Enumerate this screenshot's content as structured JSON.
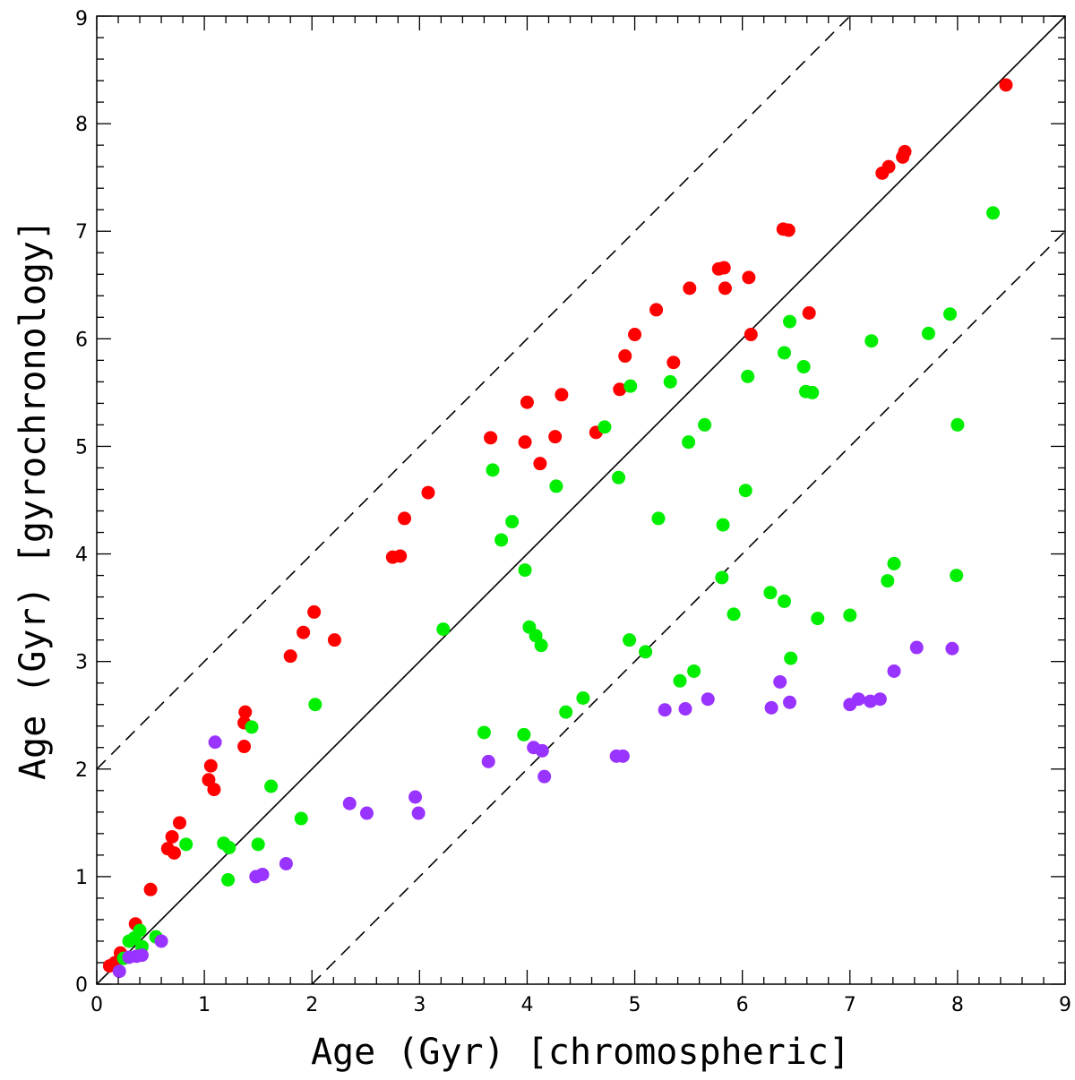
{
  "chart_data": {
    "type": "scatter",
    "title": "",
    "xlabel": "Age (Gyr) [chromospheric]",
    "ylabel": "Age (Gyr) [gyrochronology]",
    "xlim": [
      0,
      9
    ],
    "ylim": [
      0,
      9
    ],
    "xticks": [
      0,
      1,
      2,
      3,
      4,
      5,
      6,
      7,
      8,
      9
    ],
    "yticks": [
      0,
      1,
      2,
      3,
      4,
      5,
      6,
      7,
      8,
      9
    ],
    "x_tick_labels": [
      "0",
      "1",
      "2",
      "3",
      "4",
      "5",
      "6",
      "7",
      "8",
      "9"
    ],
    "y_tick_labels": [
      "0",
      "1",
      "2",
      "3",
      "4",
      "5",
      "6",
      "7",
      "8",
      "9"
    ],
    "grid": false,
    "legend": "none",
    "reference_lines": [
      {
        "style": "solid",
        "points": [
          [
            0,
            0
          ],
          [
            9,
            9
          ]
        ]
      },
      {
        "style": "dashed",
        "points": [
          [
            0,
            2
          ],
          [
            7,
            9
          ]
        ]
      },
      {
        "style": "dashed",
        "points": [
          [
            2,
            0
          ],
          [
            9,
            7
          ]
        ]
      }
    ],
    "series": [
      {
        "color": "#ff0000",
        "points": [
          [
            0.12,
            0.17
          ],
          [
            0.17,
            0.2
          ],
          [
            0.22,
            0.29
          ],
          [
            0.36,
            0.56
          ],
          [
            0.5,
            0.88
          ],
          [
            0.66,
            1.26
          ],
          [
            0.7,
            1.37
          ],
          [
            0.72,
            1.22
          ],
          [
            0.77,
            1.5
          ],
          [
            1.04,
            1.9
          ],
          [
            1.06,
            2.03
          ],
          [
            1.09,
            1.81
          ],
          [
            1.37,
            2.21
          ],
          [
            1.37,
            2.43
          ],
          [
            1.38,
            2.53
          ],
          [
            1.8,
            3.05
          ],
          [
            1.92,
            3.27
          ],
          [
            2.02,
            3.46
          ],
          [
            2.21,
            3.2
          ],
          [
            2.75,
            3.97
          ],
          [
            2.82,
            3.98
          ],
          [
            2.86,
            4.33
          ],
          [
            3.08,
            4.57
          ],
          [
            3.66,
            5.08
          ],
          [
            3.98,
            5.04
          ],
          [
            4.0,
            5.41
          ],
          [
            4.12,
            4.84
          ],
          [
            4.26,
            5.09
          ],
          [
            4.32,
            5.48
          ],
          [
            4.64,
            5.13
          ],
          [
            4.86,
            5.53
          ],
          [
            4.91,
            5.84
          ],
          [
            5.0,
            6.04
          ],
          [
            5.2,
            6.27
          ],
          [
            5.36,
            5.78
          ],
          [
            5.51,
            6.47
          ],
          [
            5.78,
            6.65
          ],
          [
            5.83,
            6.66
          ],
          [
            5.84,
            6.47
          ],
          [
            6.06,
            6.57
          ],
          [
            6.08,
            6.04
          ],
          [
            6.38,
            7.02
          ],
          [
            6.43,
            7.01
          ],
          [
            6.62,
            6.24
          ],
          [
            7.3,
            7.54
          ],
          [
            7.36,
            7.6
          ],
          [
            7.49,
            7.69
          ],
          [
            7.51,
            7.74
          ],
          [
            8.45,
            8.36
          ]
        ]
      },
      {
        "color": "#00ee00",
        "points": [
          [
            0.25,
            0.24
          ],
          [
            0.3,
            0.4
          ],
          [
            0.35,
            0.43
          ],
          [
            0.4,
            0.5
          ],
          [
            0.42,
            0.35
          ],
          [
            0.55,
            0.44
          ],
          [
            0.83,
            1.3
          ],
          [
            1.18,
            1.31
          ],
          [
            1.22,
            0.97
          ],
          [
            1.23,
            1.27
          ],
          [
            1.44,
            2.39
          ],
          [
            1.5,
            1.3
          ],
          [
            1.62,
            1.84
          ],
          [
            1.9,
            1.54
          ],
          [
            2.03,
            2.6
          ],
          [
            3.22,
            3.3
          ],
          [
            3.6,
            2.34
          ],
          [
            3.68,
            4.78
          ],
          [
            3.76,
            4.13
          ],
          [
            3.86,
            4.3
          ],
          [
            3.97,
            2.32
          ],
          [
            3.98,
            3.85
          ],
          [
            4.02,
            3.32
          ],
          [
            4.08,
            3.24
          ],
          [
            4.13,
            3.15
          ],
          [
            4.27,
            4.63
          ],
          [
            4.36,
            2.53
          ],
          [
            4.52,
            2.66
          ],
          [
            4.72,
            5.18
          ],
          [
            4.85,
            4.71
          ],
          [
            4.95,
            3.2
          ],
          [
            4.96,
            5.56
          ],
          [
            5.1,
            3.09
          ],
          [
            5.22,
            4.33
          ],
          [
            5.33,
            5.6
          ],
          [
            5.42,
            2.82
          ],
          [
            5.5,
            5.04
          ],
          [
            5.55,
            2.91
          ],
          [
            5.65,
            5.2
          ],
          [
            5.81,
            3.78
          ],
          [
            5.82,
            4.27
          ],
          [
            5.92,
            3.44
          ],
          [
            6.03,
            4.59
          ],
          [
            6.05,
            5.65
          ],
          [
            6.26,
            3.64
          ],
          [
            6.39,
            3.56
          ],
          [
            6.39,
            5.87
          ],
          [
            6.44,
            6.16
          ],
          [
            6.45,
            3.03
          ],
          [
            6.57,
            5.74
          ],
          [
            6.59,
            5.51
          ],
          [
            6.65,
            5.5
          ],
          [
            6.7,
            3.4
          ],
          [
            7.0,
            3.43
          ],
          [
            7.2,
            5.98
          ],
          [
            7.35,
            3.75
          ],
          [
            7.41,
            3.91
          ],
          [
            7.73,
            6.05
          ],
          [
            7.93,
            6.23
          ],
          [
            7.99,
            3.8
          ],
          [
            8.0,
            5.2
          ],
          [
            8.33,
            7.17
          ]
        ]
      },
      {
        "color": "#9933ff",
        "points": [
          [
            0.21,
            0.12
          ],
          [
            0.3,
            0.25
          ],
          [
            0.37,
            0.26
          ],
          [
            0.42,
            0.27
          ],
          [
            0.6,
            0.4
          ],
          [
            1.1,
            2.25
          ],
          [
            1.48,
            1.0
          ],
          [
            1.54,
            1.02
          ],
          [
            1.76,
            1.12
          ],
          [
            2.35,
            1.68
          ],
          [
            2.51,
            1.59
          ],
          [
            2.96,
            1.74
          ],
          [
            2.99,
            1.59
          ],
          [
            3.64,
            2.07
          ],
          [
            4.06,
            2.2
          ],
          [
            4.14,
            2.17
          ],
          [
            4.16,
            1.93
          ],
          [
            4.83,
            2.12
          ],
          [
            4.89,
            2.12
          ],
          [
            5.28,
            2.55
          ],
          [
            5.47,
            2.56
          ],
          [
            5.68,
            2.65
          ],
          [
            6.27,
            2.57
          ],
          [
            6.35,
            2.81
          ],
          [
            6.44,
            2.62
          ],
          [
            7.0,
            2.6
          ],
          [
            7.08,
            2.65
          ],
          [
            7.19,
            2.63
          ],
          [
            7.28,
            2.65
          ],
          [
            7.41,
            2.91
          ],
          [
            7.62,
            3.13
          ],
          [
            7.95,
            3.12
          ]
        ]
      }
    ]
  }
}
